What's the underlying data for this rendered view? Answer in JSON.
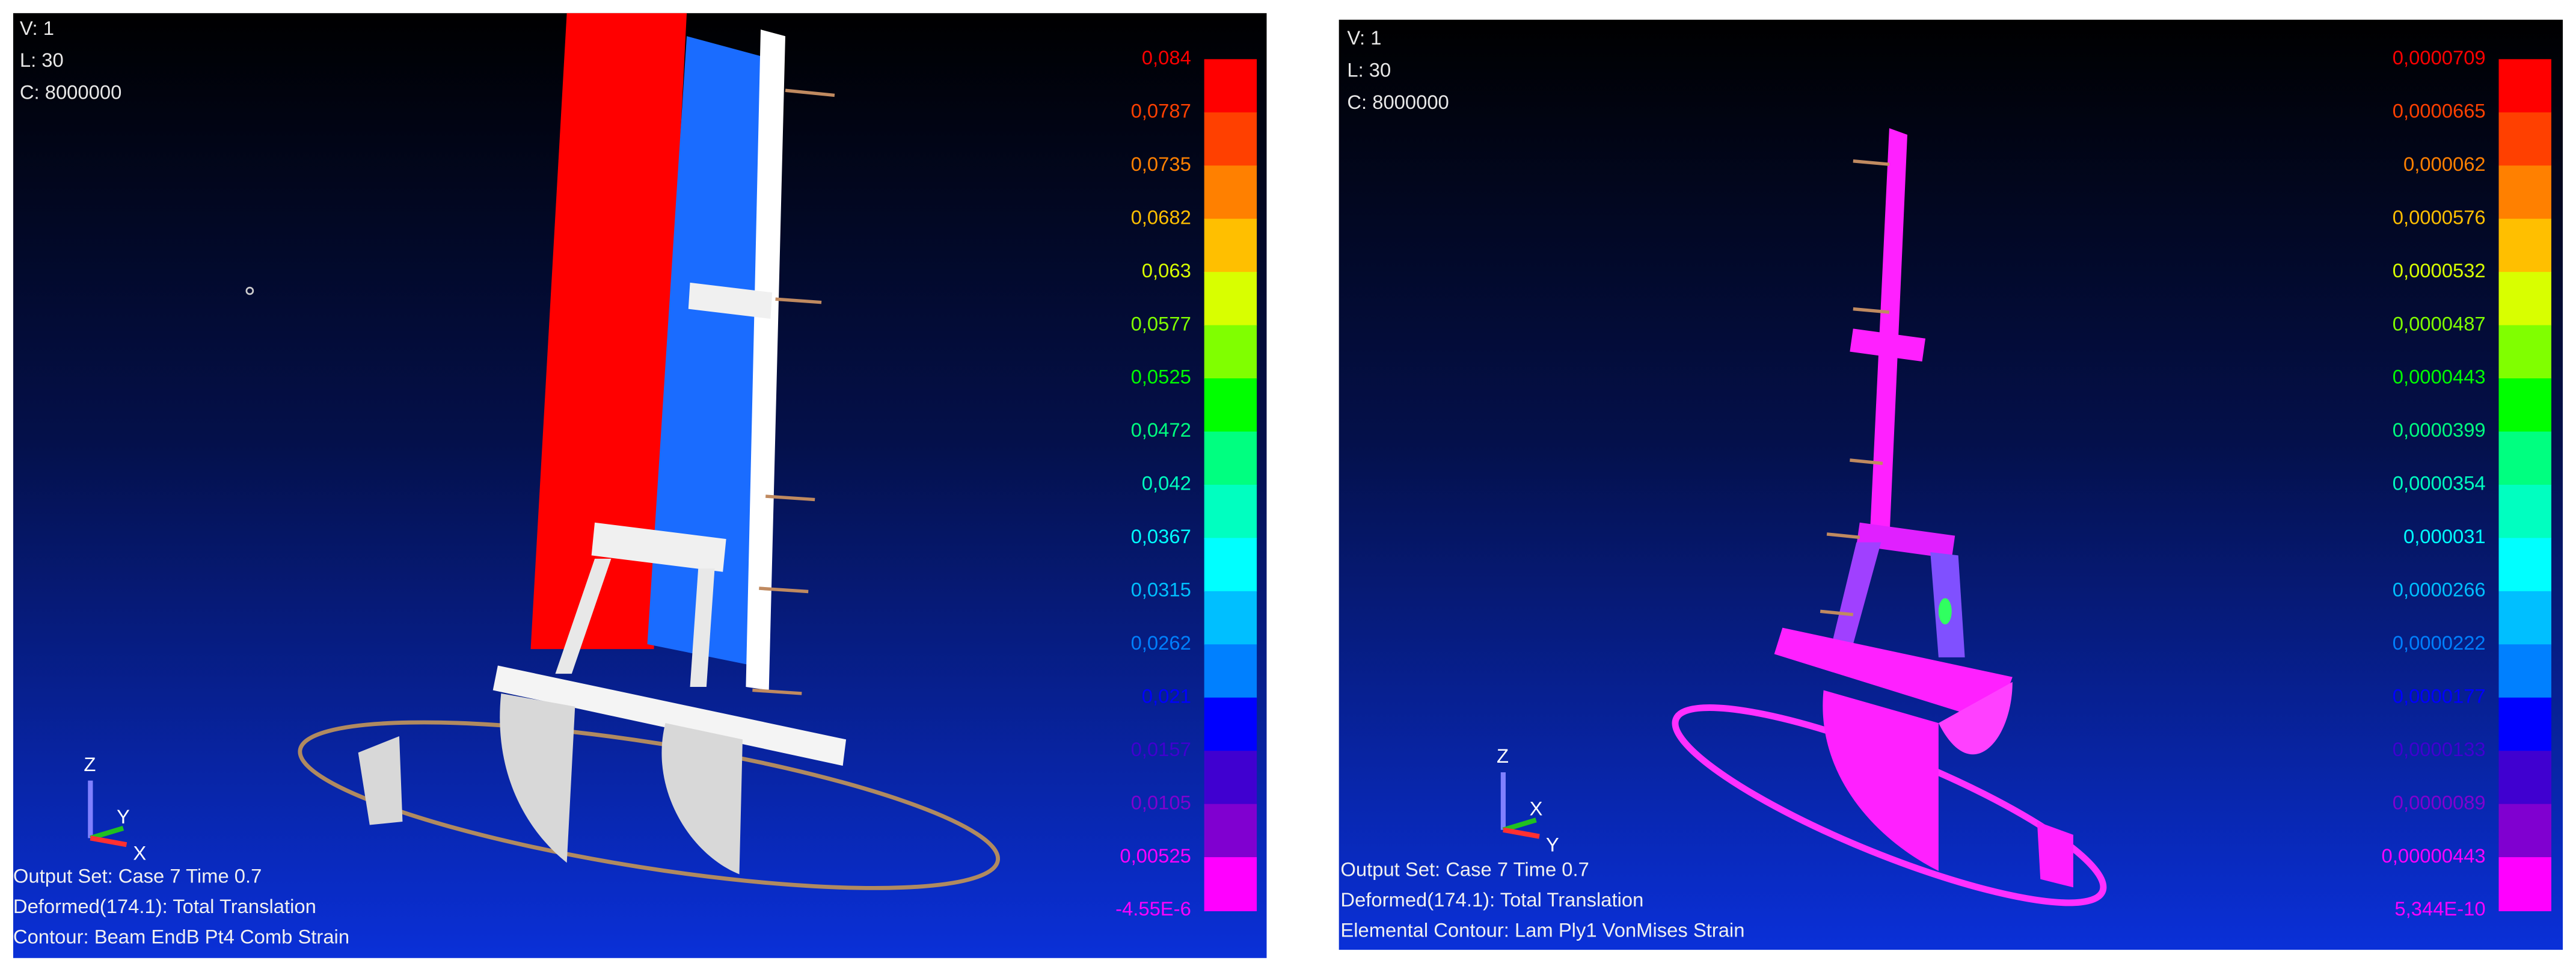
{
  "panels": [
    {
      "header": [
        "V: 1",
        "L: 30",
        "C: 8000000"
      ],
      "legend": {
        "labels": [
          "0,084",
          "0,0787",
          "0,0735",
          "0,0682",
          "0,063",
          "0,0577",
          "0,0525",
          "0,0472",
          "0,042",
          "0,0367",
          "0,0315",
          "0,0262",
          "0,021",
          "0,0157",
          "0,0105",
          "0,00525",
          "-4.55E-6"
        ],
        "colors": [
          "#ff0000",
          "#ff4000",
          "#ff8000",
          "#ffbf00",
          "#d8ff00",
          "#80ff00",
          "#00ff00",
          "#00ff80",
          "#00ffc0",
          "#00ffff",
          "#00bfff",
          "#0080ff",
          "#0000ff",
          "#4000d0",
          "#8000d0",
          "#ff00ff"
        ]
      },
      "axes": [
        "Z",
        "Y",
        "X"
      ],
      "footer": [
        "Output Set: Case 7 Time 0.7",
        "Deformed(174.1): Total Translation",
        "Contour: Beam EndB Pt4 Comb Strain"
      ]
    },
    {
      "header": [
        "V: 1",
        "L: 30",
        "C: 8000000"
      ],
      "legend": {
        "labels": [
          "0,0000709",
          "0,0000665",
          "0,000062",
          "0,0000576",
          "0,0000532",
          "0,0000487",
          "0,0000443",
          "0,0000399",
          "0,0000354",
          "0,000031",
          "0,0000266",
          "0,0000222",
          "0,0000177",
          "0,0000133",
          "0,0000089",
          "0,00000443",
          "5,344E-10"
        ],
        "colors": [
          "#ff0000",
          "#ff4000",
          "#ff8000",
          "#ffbf00",
          "#d8ff00",
          "#80ff00",
          "#00ff00",
          "#00ff80",
          "#00ffc0",
          "#00ffff",
          "#00bfff",
          "#0080ff",
          "#0000ff",
          "#4000d0",
          "#8000d0",
          "#ff00ff"
        ]
      },
      "axes": [
        "Z",
        "X",
        "Y"
      ],
      "footer": [
        "Output Set: Case 7 Time 0.7",
        "Deformed(174.1): Total Translation",
        "Elemental Contour: Lam Ply1 VonMises Strain"
      ]
    }
  ]
}
